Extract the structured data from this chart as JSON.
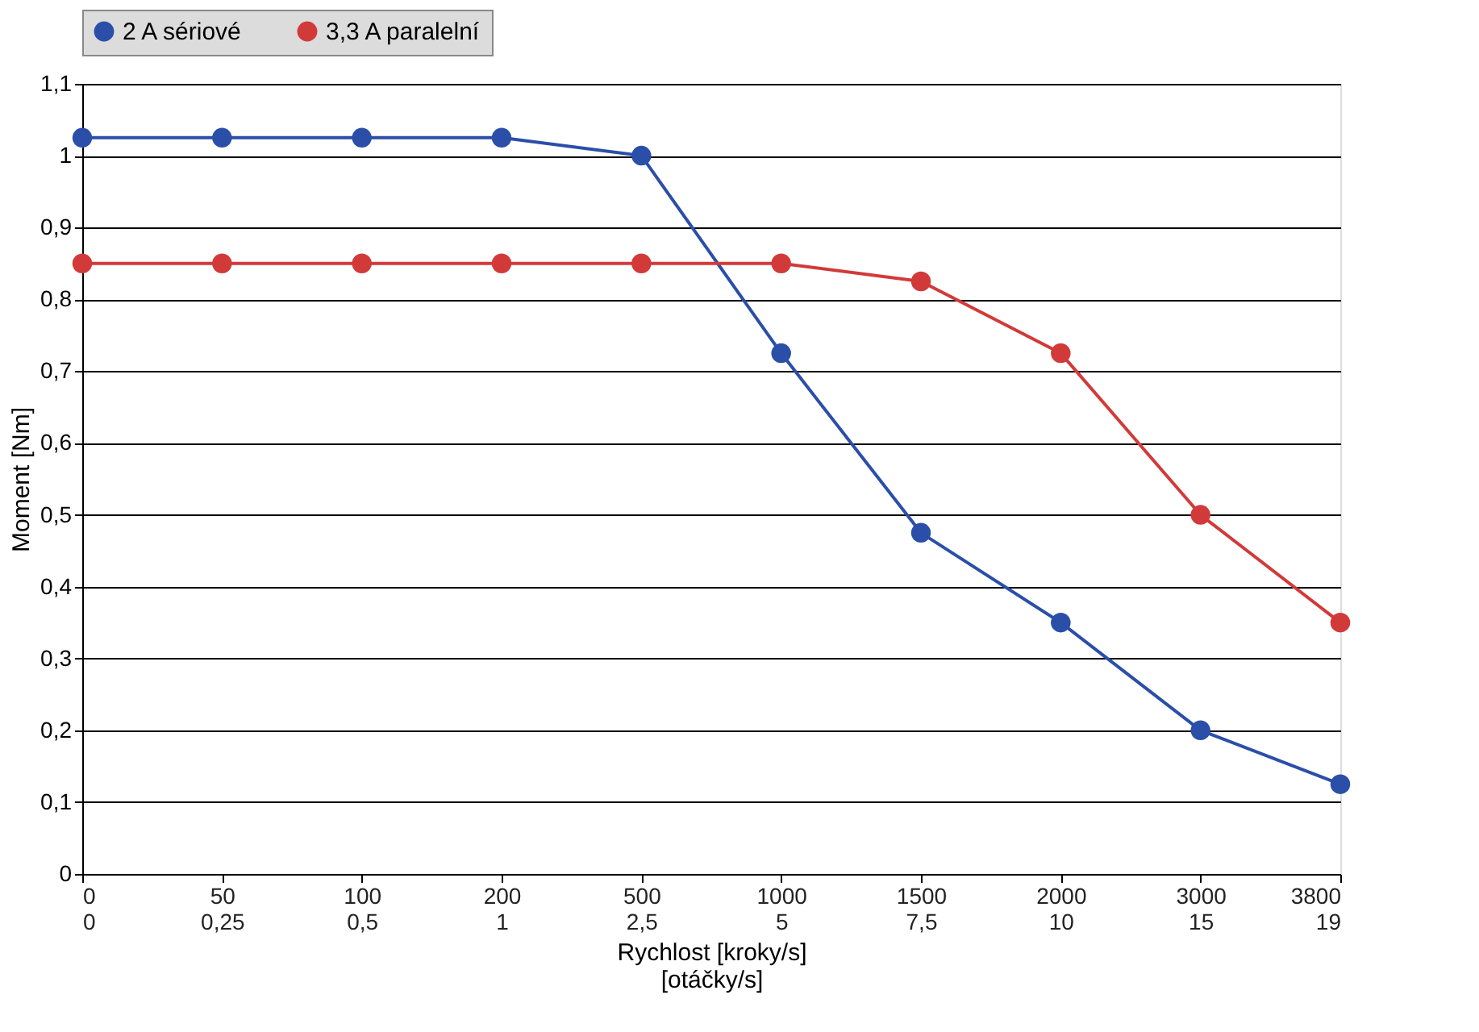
{
  "chart_data": {
    "type": "line",
    "xlabel": "Rychlost [kroky/s]\n[otáčky/s]",
    "ylabel": "Moment [Nm]",
    "categories": [
      "0\n0",
      "50\n0,25",
      "100\n0,5",
      "200\n1",
      "500\n2,5",
      "1000\n5",
      "1500\n7,5",
      "2000\n10",
      "3000\n15",
      "3800\n19"
    ],
    "series": [
      {
        "name": "2 A sériové",
        "color": "#2b4fa8",
        "values": [
          1.025,
          1.025,
          1.025,
          1.025,
          1.0,
          0.725,
          0.475,
          0.35,
          0.2,
          0.125
        ]
      },
      {
        "name": "3,3 A paralelní",
        "color": "#d23a3a",
        "values": [
          0.85,
          0.85,
          0.85,
          0.85,
          0.85,
          0.85,
          0.825,
          0.725,
          0.5,
          0.35
        ]
      }
    ],
    "ylim": [
      0,
      1.1
    ],
    "yticks": [
      0,
      {
        "value": 0.1,
        "label": "0,1"
      },
      {
        "value": 0.2,
        "label": "0,2"
      },
      {
        "value": 0.3,
        "label": "0,3"
      },
      {
        "value": 0.4,
        "label": "0,4"
      },
      {
        "value": 0.5,
        "label": "0,5"
      },
      {
        "value": 0.6,
        "label": "0,6"
      },
      {
        "value": 0.7,
        "label": "0,7"
      },
      {
        "value": 0.8,
        "label": "0,8"
      },
      {
        "value": 0.9,
        "label": "0,9"
      },
      1,
      {
        "value": 1.1,
        "label": "1,1"
      }
    ],
    "grid": "y",
    "legend": "top",
    "marker": "circle",
    "line_style": "solid"
  }
}
